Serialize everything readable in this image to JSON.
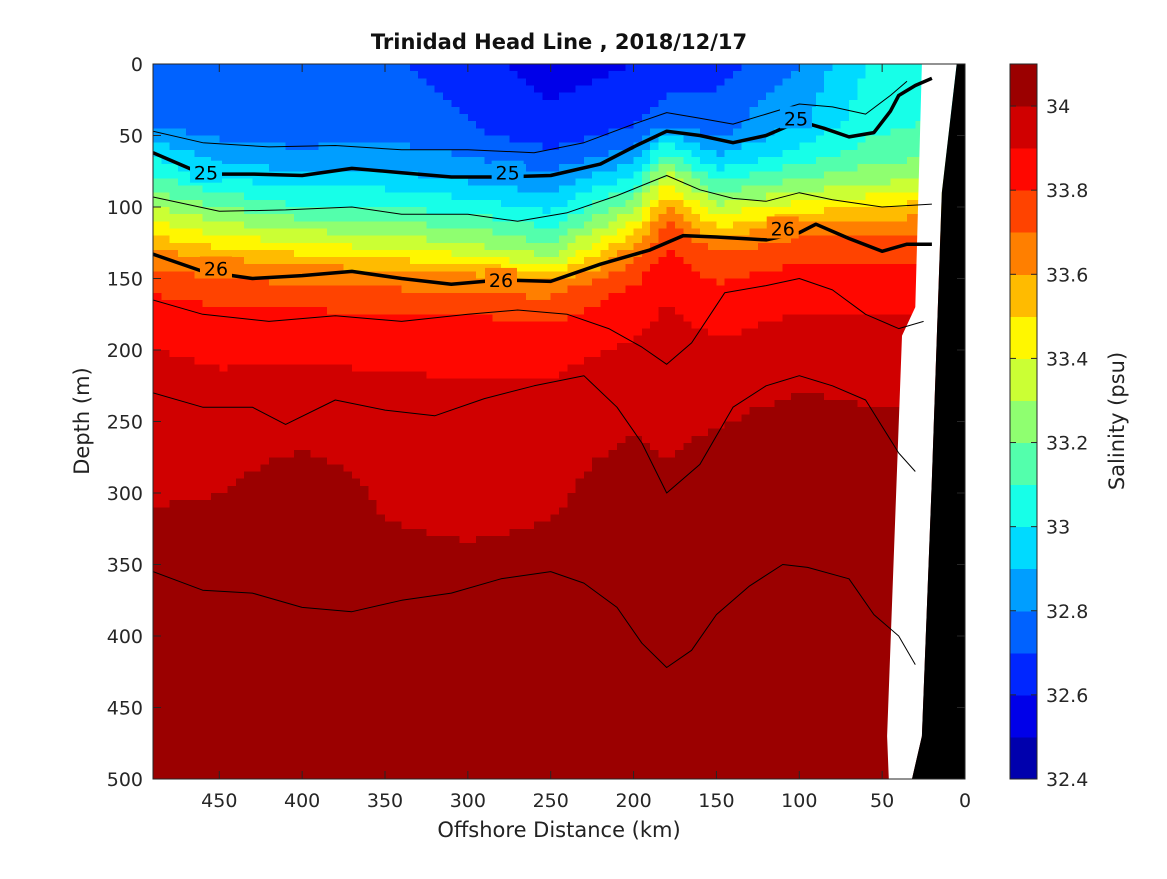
{
  "chart_data": {
    "type": "heatmap",
    "title": "Trinidad Head Line , 2018/12/17",
    "xlabel": "Offshore Distance (km)",
    "ylabel": "Depth (m)",
    "colorbar_label": "Salinity (psu)",
    "xlim": [
      490,
      0
    ],
    "ylim": [
      0,
      500
    ],
    "x_ticks": [
      450,
      400,
      350,
      300,
      250,
      200,
      150,
      100,
      50,
      0
    ],
    "y_ticks": [
      0,
      50,
      100,
      150,
      200,
      250,
      300,
      350,
      400,
      450,
      500
    ],
    "colorbar_ticks": [
      34,
      33.8,
      33.6,
      33.4,
      33.2,
      33,
      32.8,
      32.6,
      32.4
    ],
    "colorbar_range": [
      32.4,
      34.1
    ],
    "colormap": [
      "#00008f",
      "#0000bf",
      "#0000ef",
      "#0020ff",
      "#0050ff",
      "#0080ff",
      "#00b0ff",
      "#00e0ff",
      "#20ffdf",
      "#50ffaf",
      "#80ff7f",
      "#b0ff4f",
      "#dfff20",
      "#ffdf00",
      "#ffaf00",
      "#ff8000",
      "#ff5000",
      "#ff2000",
      "#ef0000",
      "#bf0000",
      "#8f0000"
    ],
    "salinity_profiles": [
      {
        "x": 490,
        "d": [
          0,
          40,
          60,
          90,
          115,
          135,
          170,
          240,
          380,
          430
        ],
        "s": [
          32.75,
          32.78,
          32.95,
          33.2,
          33.45,
          33.65,
          33.85,
          33.97,
          34.03,
          34.05
        ]
      },
      {
        "x": 450,
        "d": [
          0,
          45,
          70,
          95,
          120,
          140,
          180,
          260,
          330,
          430,
          500
        ],
        "s": [
          32.7,
          32.75,
          32.9,
          33.15,
          33.4,
          33.65,
          33.85,
          33.97,
          34.02,
          34.05,
          34.06
        ]
      },
      {
        "x": 400,
        "d": [
          0,
          50,
          75,
          100,
          125,
          145,
          180,
          240,
          300,
          400,
          500
        ],
        "s": [
          32.7,
          32.75,
          32.9,
          33.1,
          33.4,
          33.65,
          33.85,
          33.96,
          34.04,
          34.05,
          34.06
        ]
      },
      {
        "x": 350,
        "d": [
          0,
          50,
          75,
          100,
          125,
          148,
          185,
          260,
          360,
          450,
          500
        ],
        "s": [
          32.72,
          32.78,
          32.9,
          33.1,
          33.35,
          33.65,
          33.85,
          33.97,
          34.02,
          34.05,
          34.06
        ]
      },
      {
        "x": 300,
        "d": [
          0,
          50,
          80,
          105,
          130,
          150,
          185,
          260,
          370,
          450,
          500
        ],
        "s": [
          32.65,
          32.72,
          32.88,
          33.1,
          33.35,
          33.65,
          33.85,
          33.96,
          34.02,
          34.05,
          34.06
        ]
      },
      {
        "x": 250,
        "d": [
          0,
          50,
          85,
          110,
          135,
          155,
          190,
          260,
          360,
          450,
          500
        ],
        "s": [
          32.55,
          32.65,
          32.85,
          33.05,
          33.3,
          33.65,
          33.85,
          33.97,
          34.02,
          34.05,
          34.07
        ]
      },
      {
        "x": 200,
        "d": [
          0,
          45,
          70,
          95,
          115,
          135,
          165,
          230,
          290,
          420,
          500
        ],
        "s": [
          32.6,
          32.7,
          32.9,
          33.2,
          33.45,
          33.7,
          33.85,
          33.97,
          34.03,
          34.05,
          34.07
        ]
      },
      {
        "x": 180,
        "d": [
          0,
          40,
          55,
          75,
          95,
          115,
          150,
          220,
          320,
          450,
          500
        ],
        "s": [
          32.65,
          32.75,
          33.0,
          33.3,
          33.55,
          33.75,
          33.88,
          33.97,
          34.02,
          34.05,
          34.06
        ]
      },
      {
        "x": 150,
        "d": [
          0,
          50,
          70,
          90,
          110,
          130,
          165,
          230,
          280,
          450,
          500
        ],
        "s": [
          32.65,
          32.78,
          32.95,
          33.2,
          33.45,
          33.7,
          33.85,
          33.97,
          34.03,
          34.06,
          34.08
        ]
      },
      {
        "x": 100,
        "d": [
          0,
          40,
          65,
          85,
          100,
          120,
          150,
          210,
          250,
          450,
          500
        ],
        "s": [
          32.8,
          32.9,
          33.05,
          33.25,
          33.45,
          33.7,
          33.85,
          33.97,
          34.03,
          34.06,
          34.08
        ]
      },
      {
        "x": 60,
        "d": [
          0,
          40,
          65,
          85,
          100,
          120,
          150,
          210,
          270,
          450,
          500
        ],
        "s": [
          33.0,
          33.05,
          33.15,
          33.3,
          33.5,
          33.7,
          33.85,
          33.97,
          34.03,
          34.05,
          34.07
        ]
      },
      {
        "x": 20,
        "d": [
          0,
          40,
          65,
          85,
          100,
          120,
          150,
          210,
          270,
          450,
          500
        ],
        "s": [
          33.05,
          33.1,
          33.2,
          33.35,
          33.55,
          33.72,
          33.86,
          33.97,
          34.03,
          34.05,
          34.07
        ]
      }
    ],
    "density_contours": [
      {
        "label": "25",
        "bold": true,
        "points": [
          [
            490,
            62
          ],
          [
            460,
            77
          ],
          [
            430,
            77
          ],
          [
            400,
            78
          ],
          [
            370,
            73
          ],
          [
            340,
            76
          ],
          [
            310,
            79
          ],
          [
            280,
            79
          ],
          [
            250,
            78
          ],
          [
            220,
            70
          ],
          [
            200,
            58
          ],
          [
            180,
            47
          ],
          [
            160,
            50
          ],
          [
            140,
            55
          ],
          [
            120,
            50
          ],
          [
            100,
            40
          ],
          [
            85,
            45
          ],
          [
            70,
            51
          ],
          [
            55,
            48
          ],
          [
            45,
            33
          ],
          [
            40,
            22
          ],
          [
            30,
            15
          ],
          [
            20,
            10
          ]
        ]
      },
      {
        "label": "26",
        "bold": true,
        "points": [
          [
            490,
            133
          ],
          [
            460,
            145
          ],
          [
            430,
            150
          ],
          [
            400,
            148
          ],
          [
            370,
            145
          ],
          [
            340,
            150
          ],
          [
            310,
            154
          ],
          [
            280,
            151
          ],
          [
            250,
            152
          ],
          [
            220,
            140
          ],
          [
            190,
            130
          ],
          [
            170,
            120
          ],
          [
            150,
            121
          ],
          [
            120,
            123
          ],
          [
            100,
            118
          ],
          [
            90,
            112
          ],
          [
            70,
            122
          ],
          [
            50,
            131
          ],
          [
            35,
            126
          ],
          [
            20,
            126
          ]
        ]
      },
      {
        "label": "",
        "bold": false,
        "points": [
          [
            490,
            47
          ],
          [
            460,
            55
          ],
          [
            420,
            58
          ],
          [
            380,
            57
          ],
          [
            340,
            60
          ],
          [
            300,
            60
          ],
          [
            260,
            62
          ],
          [
            230,
            55
          ],
          [
            200,
            42
          ],
          [
            180,
            34
          ],
          [
            160,
            38
          ],
          [
            140,
            42
          ],
          [
            120,
            35
          ],
          [
            100,
            28
          ],
          [
            80,
            30
          ],
          [
            60,
            35
          ],
          [
            45,
            22
          ],
          [
            35,
            12
          ]
        ]
      },
      {
        "label": "",
        "bold": false,
        "points": [
          [
            490,
            93
          ],
          [
            450,
            103
          ],
          [
            410,
            102
          ],
          [
            370,
            100
          ],
          [
            340,
            105
          ],
          [
            300,
            105
          ],
          [
            270,
            110
          ],
          [
            240,
            104
          ],
          [
            210,
            92
          ],
          [
            180,
            78
          ],
          [
            160,
            88
          ],
          [
            140,
            94
          ],
          [
            120,
            96
          ],
          [
            100,
            90
          ],
          [
            80,
            95
          ],
          [
            50,
            100
          ],
          [
            20,
            98
          ]
        ]
      },
      {
        "label": "",
        "bold": false,
        "points": [
          [
            490,
            165
          ],
          [
            460,
            175
          ],
          [
            420,
            180
          ],
          [
            380,
            176
          ],
          [
            340,
            180
          ],
          [
            300,
            175
          ],
          [
            270,
            172
          ],
          [
            240,
            175
          ],
          [
            215,
            185
          ],
          [
            195,
            198
          ],
          [
            180,
            210
          ],
          [
            165,
            195
          ],
          [
            145,
            160
          ],
          [
            120,
            155
          ],
          [
            100,
            150
          ],
          [
            80,
            158
          ],
          [
            60,
            175
          ],
          [
            40,
            185
          ],
          [
            25,
            180
          ]
        ]
      },
      {
        "label": "",
        "bold": false,
        "points": [
          [
            490,
            230
          ],
          [
            460,
            240
          ],
          [
            430,
            240
          ],
          [
            410,
            252
          ],
          [
            380,
            235
          ],
          [
            350,
            242
          ],
          [
            320,
            246
          ],
          [
            290,
            234
          ],
          [
            260,
            225
          ],
          [
            230,
            218
          ],
          [
            210,
            240
          ],
          [
            195,
            265
          ],
          [
            180,
            300
          ],
          [
            160,
            280
          ],
          [
            140,
            240
          ],
          [
            120,
            225
          ],
          [
            100,
            218
          ],
          [
            80,
            225
          ],
          [
            60,
            235
          ],
          [
            40,
            272
          ],
          [
            30,
            285
          ]
        ]
      },
      {
        "label": "",
        "bold": false,
        "points": [
          [
            490,
            355
          ],
          [
            460,
            368
          ],
          [
            430,
            370
          ],
          [
            400,
            380
          ],
          [
            370,
            383
          ],
          [
            340,
            375
          ],
          [
            310,
            370
          ],
          [
            280,
            360
          ],
          [
            250,
            355
          ],
          [
            230,
            363
          ],
          [
            210,
            380
          ],
          [
            195,
            405
          ],
          [
            180,
            422
          ],
          [
            165,
            410
          ],
          [
            150,
            385
          ],
          [
            130,
            365
          ],
          [
            110,
            350
          ],
          [
            95,
            352
          ],
          [
            70,
            360
          ],
          [
            55,
            385
          ],
          [
            40,
            400
          ],
          [
            30,
            420
          ]
        ]
      }
    ],
    "coastline": [
      [
        32,
        500
      ],
      [
        26,
        470
      ],
      [
        20,
        290
      ],
      [
        14,
        90
      ],
      [
        5,
        0
      ],
      [
        0,
        0
      ],
      [
        0,
        500
      ]
    ],
    "no_data_mask": [
      [
        32,
        500
      ],
      [
        46,
        500
      ],
      [
        47,
        470
      ],
      [
        38,
        190
      ],
      [
        30,
        170
      ],
      [
        26,
        0
      ],
      [
        5,
        0
      ],
      [
        14,
        90
      ],
      [
        20,
        290
      ],
      [
        26,
        470
      ]
    ]
  }
}
